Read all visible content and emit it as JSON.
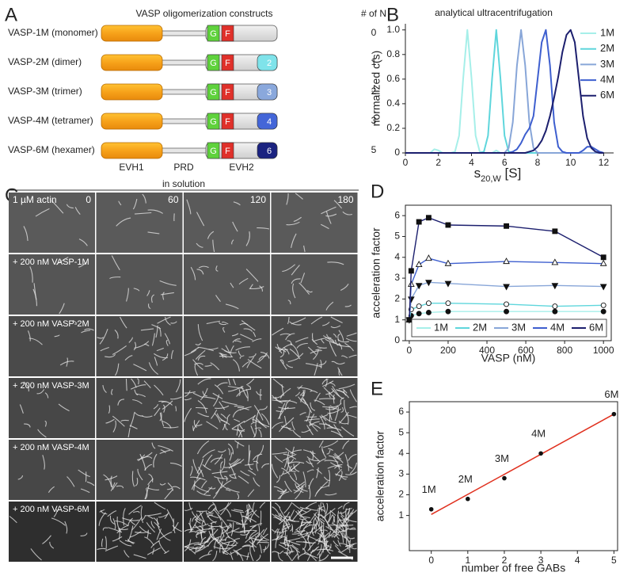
{
  "panel_labels": [
    "A",
    "B",
    "C",
    "D",
    "E"
  ],
  "diagram": {
    "title": "VASP oligomerization constructs",
    "count_header": "# of N",
    "motifs": [
      "G",
      "F"
    ],
    "domain_labels": [
      "EVH1",
      "PRD",
      "EVH2"
    ],
    "rows": [
      {
        "name": "VASP-1M (monomer)",
        "n": 0
      },
      {
        "name": "VASP-2M (dimer)",
        "n": 1,
        "domain": "2",
        "color": "#7fe3ea"
      },
      {
        "name": "VASP-3M (trimer)",
        "n": 2,
        "domain": "3",
        "color": "#8aa8dc"
      },
      {
        "name": "VASP-4M (tetramer)",
        "n": 3,
        "domain": "4",
        "color": "#4466d8"
      },
      {
        "name": "VASP-6M (hexamer)",
        "n": 5,
        "domain": "6",
        "color": "#1b2380"
      }
    ]
  },
  "micrographs": {
    "title": "in solution",
    "columns": [
      0,
      60,
      120,
      180
    ],
    "rows": [
      "1 µM actin",
      "+ 200 nM VASP-1M",
      "+ 200 nM VASP-2M",
      "+ 200 nM VASP-3M",
      "+ 200 nM VASP-4M",
      "+ 200 nM VASP-6M"
    ]
  },
  "chart_data": [
    {
      "type": "line",
      "title": "analytical ultracentrifugation",
      "ylabel": "normalized c(s)",
      "xlabel_parts": [
        "s",
        "20,W",
        " [S]"
      ],
      "xlim": [
        0,
        12.6
      ],
      "ylim": [
        0,
        1.05
      ],
      "xticks": [
        0,
        2,
        4,
        6,
        8,
        10,
        12
      ],
      "yticks": [
        0,
        0.2,
        0.4,
        0.6,
        0.8,
        {
          "value": 1,
          "label": "1.0"
        }
      ],
      "box": false,
      "legend": "right",
      "x": [
        0,
        0.25,
        0.5,
        0.75,
        1,
        1.25,
        1.5,
        1.75,
        2,
        2.25,
        2.5,
        2.75,
        3,
        3.25,
        3.5,
        3.75,
        4,
        4.25,
        4.5,
        4.75,
        5,
        5.25,
        5.5,
        5.75,
        6,
        6.25,
        6.5,
        6.75,
        7,
        7.25,
        7.5,
        7.75,
        8,
        8.25,
        8.5,
        8.75,
        9,
        9.25,
        9.5,
        9.75,
        10,
        10.25,
        10.5,
        10.75,
        11,
        11.25,
        11.5,
        11.75,
        12
      ],
      "series": [
        {
          "name": "1M",
          "color": "#a6efe9",
          "values": [
            0,
            0,
            0,
            0,
            0,
            0,
            0,
            0.03,
            0.02,
            0,
            0,
            0,
            0.01,
            0.14,
            0.61,
            1,
            0.61,
            0.14,
            0.01,
            0,
            0,
            0,
            0.02,
            0,
            0,
            0,
            0,
            0,
            0,
            0,
            0,
            0,
            0,
            0,
            0,
            0,
            0,
            0,
            0,
            0,
            0,
            0,
            0,
            0,
            0,
            0,
            0,
            0,
            0
          ]
        },
        {
          "name": "2M",
          "color": "#5fd6dc",
          "values": [
            0,
            0,
            0,
            0,
            0,
            0,
            0,
            0,
            0,
            0,
            0,
            0,
            0,
            0,
            0,
            0,
            0,
            0,
            0,
            0.01,
            0.14,
            0.61,
            1,
            0.61,
            0.14,
            0.01,
            0,
            0,
            0,
            0,
            0,
            0,
            0,
            0,
            0,
            0,
            0,
            0,
            0,
            0,
            0,
            0,
            0,
            0,
            0,
            0,
            0,
            0,
            0
          ]
        },
        {
          "name": "3M",
          "color": "#88a6d8",
          "values": [
            0,
            0,
            0,
            0,
            0,
            0,
            0,
            0,
            0,
            0,
            0,
            0,
            0,
            0,
            0,
            0,
            0,
            0,
            0,
            0,
            0,
            0,
            0,
            0,
            0,
            0.04,
            0.25,
            0.71,
            1,
            0.71,
            0.25,
            0.04,
            0,
            0,
            0,
            0,
            0,
            0,
            0,
            0,
            0,
            0,
            0,
            0,
            0,
            0,
            0,
            0,
            0
          ]
        },
        {
          "name": "4M",
          "color": "#3e5fcf",
          "values": [
            0,
            0,
            0,
            0,
            0,
            0,
            0,
            0,
            0,
            0,
            0,
            0,
            0,
            0,
            0,
            0,
            0,
            0,
            0,
            0,
            0,
            0,
            0,
            0,
            0,
            0,
            0.01,
            0.03,
            0.08,
            0.15,
            0.2,
            0.3,
            0.6,
            0.9,
            1,
            0.71,
            0.25,
            0.05,
            0.01,
            0,
            0,
            0,
            0,
            0.02,
            0.05,
            0.05,
            0.03,
            0.01,
            0
          ]
        },
        {
          "name": "6M",
          "color": "#1c1f6e",
          "values": [
            0,
            0,
            0,
            0,
            0,
            0,
            0,
            0,
            0,
            0,
            0,
            0,
            0,
            0,
            0,
            0,
            0,
            0,
            0,
            0,
            0,
            0,
            0,
            0,
            0,
            0,
            0,
            0,
            0,
            0,
            0.01,
            0.02,
            0.05,
            0.1,
            0.18,
            0.3,
            0.45,
            0.62,
            0.82,
            0.96,
            1,
            0.9,
            0.6,
            0.3,
            0.12,
            0.04,
            0.01,
            0,
            0
          ]
        }
      ]
    },
    {
      "type": "line",
      "xlabel": "VASP (nM)",
      "ylabel": "acceleration factor",
      "xlim": [
        -20,
        1040
      ],
      "ylim": [
        0,
        6.5
      ],
      "xticks": [
        0,
        200,
        400,
        600,
        800,
        1000
      ],
      "yticks": [
        0,
        1,
        2,
        3,
        4,
        5,
        6
      ],
      "box": true,
      "legend": "bottom",
      "x": [
        0,
        10,
        50,
        100,
        200,
        500,
        750,
        1000
      ],
      "series": [
        {
          "name": "1M",
          "color": "#a6efe9",
          "marker": "circle",
          "filled": true,
          "values": [
            1.0,
            1.2,
            1.3,
            1.35,
            1.4,
            1.4,
            1.4,
            1.4
          ]
        },
        {
          "name": "2M",
          "color": "#5fd6dc",
          "marker": "circle",
          "filled": false,
          "values": [
            1.0,
            1.5,
            1.65,
            1.8,
            1.8,
            1.75,
            1.65,
            1.7
          ]
        },
        {
          "name": "3M",
          "color": "#88a6d8",
          "marker": "triangle-down",
          "filled": true,
          "values": [
            1.0,
            2.0,
            2.65,
            2.8,
            2.75,
            2.6,
            2.65,
            2.6
          ]
        },
        {
          "name": "4M",
          "color": "#3e5fcf",
          "marker": "triangle-up",
          "filled": false,
          "values": [
            1.0,
            2.7,
            3.65,
            3.95,
            3.7,
            3.8,
            3.75,
            3.7
          ]
        },
        {
          "name": "6M",
          "color": "#1c1f6e",
          "marker": "square",
          "filled": true,
          "values": [
            1.0,
            3.35,
            5.7,
            5.9,
            5.55,
            5.5,
            5.25,
            4.0
          ]
        }
      ]
    },
    {
      "type": "scatter",
      "xlabel": "number of free GABs",
      "ylabel": "acceleration factor",
      "xlim": [
        -0.6,
        5.1
      ],
      "ylim": [
        -0.7,
        6.5
      ],
      "xticks": [
        0,
        1,
        2,
        3,
        4,
        5
      ],
      "yticks": [
        1,
        2,
        3,
        4,
        5,
        6
      ],
      "box": true,
      "color": "#111111",
      "x": [
        0,
        1,
        2,
        3,
        5
      ],
      "values": [
        1.3,
        1.8,
        2.8,
        4.0,
        5.9
      ],
      "point_labels": [
        "1M",
        "2M",
        "3M",
        "4M",
        "6M"
      ],
      "fit": {
        "x": [
          0,
          5
        ],
        "y": [
          1.05,
          5.9
        ],
        "color": "#e0301e"
      }
    }
  ]
}
